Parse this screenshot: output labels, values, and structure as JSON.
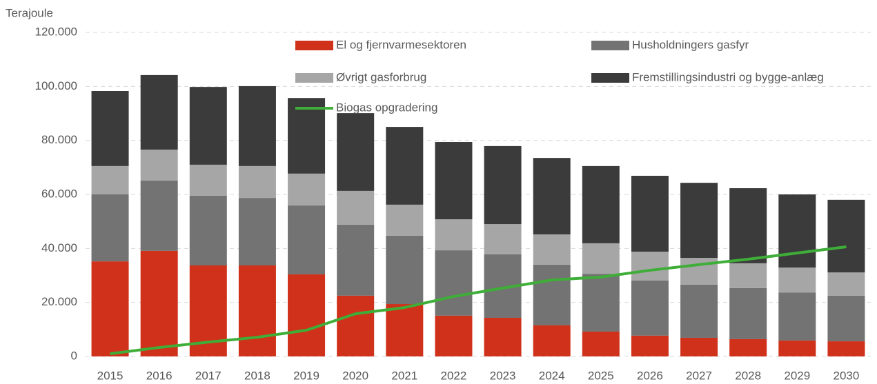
{
  "chart_data": {
    "type": "bar",
    "stacked": true,
    "y_axis_label": "Terajoule",
    "categories": [
      "2015",
      "2016",
      "2017",
      "2018",
      "2019",
      "2020",
      "2021",
      "2022",
      "2023",
      "2024",
      "2025",
      "2026",
      "2027",
      "2028",
      "2029",
      "2030"
    ],
    "series": [
      {
        "name": "El og fjernvarmesektoren",
        "color": "#d0311a",
        "values": [
          35200,
          39100,
          33700,
          33700,
          30400,
          22500,
          19400,
          15100,
          14300,
          11500,
          9200,
          7700,
          6900,
          6400,
          5900,
          5600
        ]
      },
      {
        "name": "Husholdningers gasfyr",
        "color": "#737373",
        "values": [
          24800,
          26000,
          25800,
          25000,
          25500,
          26300,
          25300,
          24200,
          23500,
          22500,
          21400,
          20400,
          19700,
          18900,
          17800,
          16900
        ]
      },
      {
        "name": "Øvrigt gasforbrug",
        "color": "#a6a6a6",
        "values": [
          10500,
          11500,
          11500,
          11800,
          11800,
          12500,
          11500,
          11500,
          11200,
          11200,
          11300,
          10700,
          9900,
          9200,
          9200,
          8600
        ]
      },
      {
        "name": "Fremstillingsindustri og bygge-anlæg",
        "color": "#3b3b3b",
        "values": [
          27800,
          27600,
          28800,
          29600,
          28000,
          28800,
          28800,
          28600,
          28900,
          28300,
          28600,
          28100,
          27800,
          27800,
          27100,
          26900
        ]
      },
      {
        "name": "Biogas opgradering",
        "color": "#3fae38",
        "type": "line",
        "values": [
          1000,
          3300,
          5300,
          7100,
          9700,
          15800,
          18100,
          22200,
          25300,
          28300,
          29400,
          31900,
          34000,
          36000,
          38300,
          40600
        ]
      }
    ],
    "ylim": [
      0,
      120000
    ],
    "yticks": [
      0,
      {
        "value": 20000,
        "label": "20.000"
      },
      {
        "value": 40000,
        "label": "40.000"
      },
      {
        "value": 60000,
        "label": "60.000"
      },
      {
        "value": 80000,
        "label": "80.000"
      },
      {
        "value": 100000,
        "label": "100.000"
      },
      {
        "value": 120000,
        "label": "120.000"
      }
    ],
    "grid": true
  }
}
